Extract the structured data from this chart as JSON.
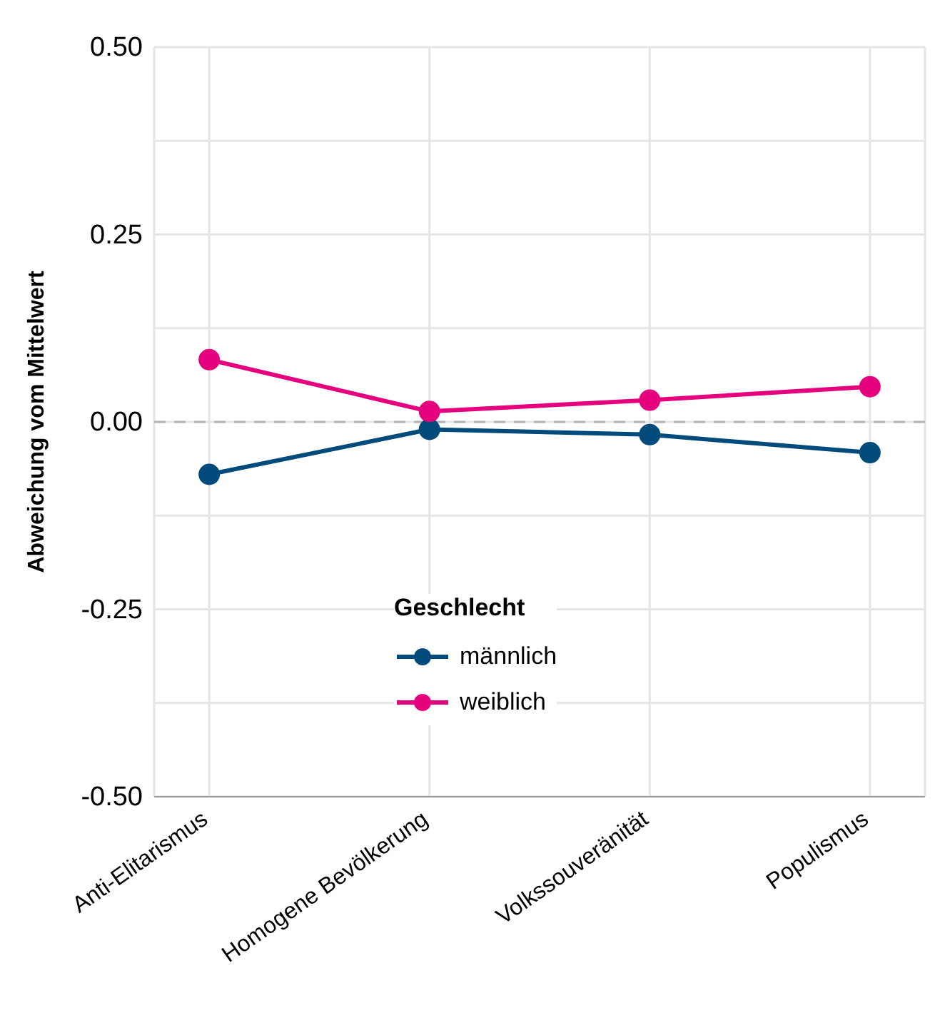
{
  "chart_data": {
    "type": "line",
    "ylabel": "Abweichung vom Mittelwert",
    "legend_title": "Geschlecht",
    "categories": [
      "Anti-Elitarismus",
      "Homogene Bevölkerung",
      "Volkssouveränität",
      "Populismus"
    ],
    "series": [
      {
        "name": "männlich",
        "color": "#004b7c",
        "values": [
          -0.07,
          -0.01,
          -0.017,
          -0.041
        ]
      },
      {
        "name": "weiblich",
        "color": "#e5007d",
        "values": [
          0.083,
          0.014,
          0.029,
          0.047
        ]
      }
    ],
    "ylim": [
      -0.5,
      0.5
    ],
    "yticks": [
      {
        "value": -0.5,
        "label": "-0.50"
      },
      {
        "value": -0.375,
        "label": null
      },
      {
        "value": -0.25,
        "label": "-0.25"
      },
      {
        "value": -0.125,
        "label": null
      },
      {
        "value": 0,
        "label": "0.00"
      },
      {
        "value": 0.125,
        "label": null
      },
      {
        "value": 0.25,
        "label": "0.25"
      },
      {
        "value": 0.375,
        "label": null
      },
      {
        "value": 0.5,
        "label": "0.50"
      }
    ],
    "ref_lines": [
      {
        "axis": "y",
        "value": 0,
        "label": null,
        "color": "#b3b3b3",
        "line_style": "dashed"
      }
    ],
    "grid": true,
    "legend": "bottom",
    "marker": "circle",
    "line_style": "solid"
  }
}
